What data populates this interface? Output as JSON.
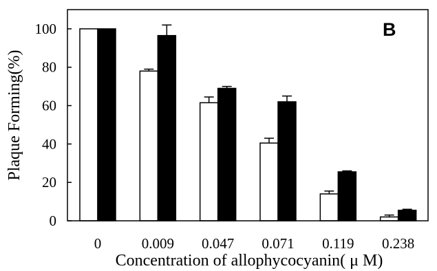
{
  "chart_data": {
    "type": "bar",
    "panel_label": "B",
    "xlabel": "Concentration of allophycocyanin( μ M)",
    "ylabel": "Plaque Forming(%)",
    "categories": [
      "0",
      "0.009",
      "0.047",
      "0.071",
      "0.119",
      "0.238"
    ],
    "ylim": [
      0,
      110
    ],
    "yticks": [
      0,
      20,
      40,
      60,
      80,
      100
    ],
    "grid": false,
    "series": [
      {
        "fill": "#ffffff",
        "values": [
          100,
          78,
          61.5,
          40.5,
          14,
          2
        ],
        "errors": [
          0,
          1,
          3,
          2.5,
          1.5,
          1
        ]
      },
      {
        "fill": "#000000",
        "values": [
          100,
          96.5,
          69,
          62,
          25.5,
          5.5
        ],
        "errors": [
          0,
          5.5,
          1,
          3,
          0.5,
          0.5
        ]
      }
    ]
  }
}
